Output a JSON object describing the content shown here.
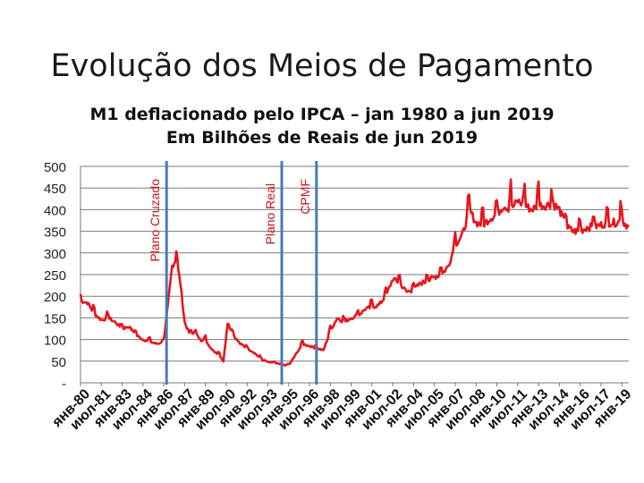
{
  "title": "Evolução dos Meios de Pagamento",
  "chart_data": {
    "type": "line",
    "title": "M1 deflacionado pelo IPCA – jan 1980 a jun 2019",
    "subtitle": "Em Bilhões de Reais de jun 2019",
    "xlabel": "",
    "ylabel": "",
    "ylim": [
      0,
      500
    ],
    "yticks": [
      0,
      50,
      100,
      150,
      200,
      250,
      300,
      350,
      400,
      450,
      500
    ],
    "ytick_labels": [
      "-",
      "50",
      "100",
      "150",
      "200",
      "250",
      "300",
      "350",
      "400",
      "450",
      "500"
    ],
    "x_range": [
      1980.0,
      2019.5
    ],
    "xtick_labels": [
      "янв-80",
      "июл-81",
      "янв-83",
      "июл-84",
      "янв-86",
      "июл-87",
      "янв-89",
      "июл-90",
      "янв-92",
      "июл-93",
      "янв-95",
      "июл-96",
      "янв-98",
      "июл-99",
      "янв-01",
      "июл-02",
      "янв-04",
      "июл-05",
      "янв-07",
      "июл-08",
      "янв-10",
      "июл-11",
      "янв-13",
      "июл-14",
      "янв-16",
      "июл-17",
      "янв-19"
    ],
    "xtick_values": [
      1980.0,
      1981.5,
      1983.0,
      1984.5,
      1986.0,
      1987.5,
      1989.0,
      1990.5,
      1992.0,
      1993.5,
      1995.0,
      1996.5,
      1998.0,
      1999.5,
      2001.0,
      2002.5,
      2004.0,
      2005.5,
      2007.0,
      2008.5,
      2010.0,
      2011.5,
      2013.0,
      2014.5,
      2016.0,
      2017.5,
      2019.0
    ],
    "grid": true,
    "series": [
      {
        "name": "M1",
        "color": "#e8141c",
        "x": [
          1980.0,
          1980.5,
          1981.0,
          1981.5,
          1982.0,
          1982.5,
          1983.0,
          1983.5,
          1984.0,
          1984.5,
          1985.0,
          1985.5,
          1986.0,
          1986.3,
          1986.6,
          1986.9,
          1987.2,
          1987.5,
          1987.9,
          1988.3,
          1988.7,
          1989.0,
          1989.5,
          1990.0,
          1990.3,
          1990.6,
          1991.0,
          1991.5,
          1992.0,
          1992.5,
          1993.0,
          1993.5,
          1994.0,
          1994.5,
          1995.0,
          1995.5,
          1996.0,
          1996.5,
          1997.0,
          1997.5,
          1998.0,
          1998.5,
          1999.0,
          1999.5,
          2000.0,
          2000.5,
          2001.0,
          2001.5,
          2002.0,
          2002.5,
          2003.0,
          2003.5,
          2004.0,
          2004.5,
          2005.0,
          2005.5,
          2006.0,
          2006.5,
          2007.0,
          2007.5,
          2008.0,
          2008.5,
          2009.0,
          2009.5,
          2010.0,
          2010.5,
          2011.0,
          2011.5,
          2012.0,
          2012.5,
          2013.0,
          2013.5,
          2014.0,
          2014.5,
          2015.0,
          2015.5,
          2016.0,
          2016.5,
          2017.0,
          2017.5,
          2018.0,
          2018.5,
          2019.0,
          2019.5
        ],
        "values": [
          190,
          185,
          160,
          145,
          150,
          140,
          125,
          130,
          110,
          100,
          95,
          90,
          95,
          180,
          270,
          285,
          230,
          140,
          110,
          120,
          95,
          100,
          75,
          65,
          50,
          140,
          110,
          90,
          80,
          70,
          55,
          48,
          45,
          42,
          40,
          65,
          90,
          85,
          80,
          75,
          120,
          150,
          140,
          150,
          155,
          170,
          175,
          180,
          200,
          240,
          230,
          210,
          215,
          230,
          235,
          245,
          250,
          270,
          320,
          340,
          400,
          370,
          365,
          380,
          390,
          410,
          400,
          420,
          410,
          400,
          410,
          410,
          415,
          400,
          360,
          350,
          350,
          360,
          360,
          365,
          370,
          370,
          375,
          360
        ],
        "peaks": [
          {
            "x": 2008.0,
            "value": 435
          },
          {
            "x": 2009.0,
            "value": 405
          },
          {
            "x": 2011.0,
            "value": 470
          },
          {
            "x": 2012.0,
            "value": 460
          },
          {
            "x": 2013.0,
            "value": 465
          },
          {
            "x": 2014.0,
            "value": 430
          },
          {
            "x": 2018.9,
            "value": 420
          }
        ]
      }
    ],
    "annotations": [
      {
        "label": "Plano Cruzado",
        "x": 1986.2,
        "color": "#4a7ab5"
      },
      {
        "label": "Plano Real",
        "x": 1994.5,
        "color": "#4a7ab5"
      },
      {
        "label": "CPMF",
        "x": 1997.0,
        "color": "#4a7ab5"
      }
    ]
  }
}
